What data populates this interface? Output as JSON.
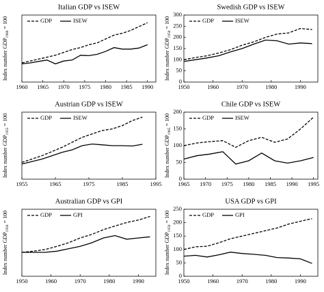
{
  "chart_data": [
    {
      "type": "line",
      "title": "Italian GDP vs ISEW",
      "ylabel": {
        "text": "Index number GDP",
        "sub": "1960",
        "end": "= 100"
      },
      "x": [
        1960,
        1962,
        1964,
        1966,
        1968,
        1970,
        1972,
        1974,
        1976,
        1978,
        1980,
        1982,
        1984,
        1986,
        1988,
        1990
      ],
      "series": [
        {
          "name": "GDP",
          "color": "#000000",
          "style": "dashed",
          "values": [
            100,
            110,
            120,
            130,
            140,
            155,
            170,
            180,
            195,
            205,
            225,
            245,
            255,
            270,
            290,
            310
          ]
        },
        {
          "name": "ISEW",
          "color": "#000000",
          "style": "solid",
          "values": [
            95,
            100,
            108,
            115,
            95,
            110,
            115,
            140,
            138,
            145,
            160,
            180,
            172,
            172,
            178,
            195
          ]
        }
      ],
      "xlim": [
        1960,
        1992
      ],
      "xticks": [
        1960,
        1965,
        1970,
        1975,
        1980,
        1985,
        1990
      ],
      "ylim": [
        0,
        350
      ],
      "legend": "upper left"
    },
    {
      "type": "line",
      "title": "Swedish GDP vs ISEW",
      "ylabel": {
        "text": "Index number GDP",
        "sub": "1950",
        "end": "= 100"
      },
      "x": [
        1950,
        1954,
        1958,
        1962,
        1966,
        1970,
        1974,
        1978,
        1982,
        1986,
        1990,
        1994
      ],
      "series": [
        {
          "name": "GDP",
          "color": "#000000",
          "style": "dashed",
          "values": [
            100,
            110,
            118,
            130,
            145,
            165,
            180,
            200,
            215,
            220,
            240,
            235
          ]
        },
        {
          "name": "ISEW",
          "color": "#000000",
          "style": "solid",
          "values": [
            92,
            100,
            108,
            118,
            135,
            150,
            170,
            188,
            185,
            170,
            175,
            172
          ]
        }
      ],
      "xlim": [
        1950,
        1996
      ],
      "xticks": [
        1950,
        1960,
        1970,
        1980,
        1990
      ],
      "ylim": [
        0,
        300
      ],
      "yticks": [
        0,
        50,
        100,
        150,
        200,
        250,
        300
      ],
      "legend": "upper left"
    },
    {
      "type": "line",
      "title": "Austrian GDP vs ISEW",
      "ylabel": {
        "text": "Index number GDP",
        "sub": "1955",
        "end": "= 100"
      },
      "x": [
        1955,
        1958,
        1961,
        1964,
        1967,
        1970,
        1973,
        1976,
        1979,
        1982,
        1985,
        1988,
        1991
      ],
      "series": [
        {
          "name": "GDP",
          "color": "#000000",
          "style": "dashed",
          "values": [
            100,
            120,
            140,
            165,
            190,
            220,
            250,
            270,
            290,
            300,
            320,
            350,
            370
          ]
        },
        {
          "name": "ISEW",
          "color": "#000000",
          "style": "solid",
          "values": [
            90,
            105,
            120,
            140,
            160,
            175,
            200,
            210,
            205,
            200,
            200,
            198,
            208
          ]
        }
      ],
      "xlim": [
        1955,
        1995
      ],
      "xticks": [
        1955,
        1965,
        1975,
        1985,
        1995
      ],
      "ylim": [
        0,
        400
      ],
      "legend": "upper left"
    },
    {
      "type": "line",
      "title": "Chile GDP  vs ISEW",
      "ylabel": {
        "text": "Index number GDP",
        "sub": "1965",
        "end": "= 100"
      },
      "x": [
        1965,
        1968,
        1971,
        1974,
        1977,
        1980,
        1983,
        1986,
        1989,
        1992,
        1995
      ],
      "series": [
        {
          "name": "GDP",
          "color": "#000000",
          "style": "dashed",
          "values": [
            100,
            108,
            112,
            115,
            95,
            115,
            125,
            110,
            120,
            150,
            185
          ]
        },
        {
          "name": "ISEW",
          "color": "#000000",
          "style": "solid",
          "values": [
            60,
            70,
            75,
            82,
            45,
            55,
            78,
            55,
            48,
            55,
            65
          ]
        }
      ],
      "xlim": [
        1965,
        1996
      ],
      "xticks": [
        1965,
        1970,
        1975,
        1980,
        1985,
        1990,
        1995
      ],
      "ylim": [
        0,
        200
      ],
      "yticks": [
        0,
        50,
        100,
        150,
        200
      ],
      "legend": "upper left"
    },
    {
      "type": "line",
      "title": "Australian GDP vs GPI",
      "ylabel": {
        "text": "Index number GDP",
        "sub": "1950",
        "end": "= 100"
      },
      "x": [
        1950,
        1954,
        1958,
        1962,
        1966,
        1970,
        1974,
        1978,
        1982,
        1986,
        1990,
        1994
      ],
      "series": [
        {
          "name": "GDP",
          "color": "#000000",
          "style": "dashed",
          "values": [
            100,
            105,
            112,
            125,
            140,
            160,
            175,
            195,
            210,
            225,
            235,
            250
          ]
        },
        {
          "name": "GPI",
          "color": "#000000",
          "style": "solid",
          "values": [
            100,
            100,
            100,
            105,
            115,
            125,
            140,
            160,
            170,
            155,
            160,
            165
          ]
        }
      ],
      "xlim": [
        1950,
        1996
      ],
      "xticks": [
        1950,
        1960,
        1970,
        1980,
        1990
      ],
      "ylim": [
        0,
        280
      ],
      "legend": "upper left"
    },
    {
      "type": "line",
      "title": "USA GDP vs GPI",
      "ylabel": {
        "text": "Index number GDP",
        "sub": "1950",
        "end": "= 100"
      },
      "x": [
        1950,
        1954,
        1958,
        1962,
        1966,
        1970,
        1974,
        1978,
        1982,
        1986,
        1990,
        1994
      ],
      "series": [
        {
          "name": "GDP",
          "color": "#000000",
          "style": "dashed",
          "values": [
            100,
            110,
            112,
            125,
            140,
            150,
            160,
            170,
            180,
            195,
            205,
            215
          ]
        },
        {
          "name": "GPI",
          "color": "#000000",
          "style": "solid",
          "values": [
            75,
            78,
            72,
            80,
            90,
            85,
            82,
            78,
            70,
            68,
            65,
            48
          ]
        }
      ],
      "xlim": [
        1950,
        1996
      ],
      "xticks": [
        1950,
        1960,
        1970,
        1980,
        1990
      ],
      "ylim": [
        0,
        250
      ],
      "yticks": [
        0,
        50,
        100,
        150,
        200,
        250
      ],
      "legend": "upper left"
    }
  ]
}
